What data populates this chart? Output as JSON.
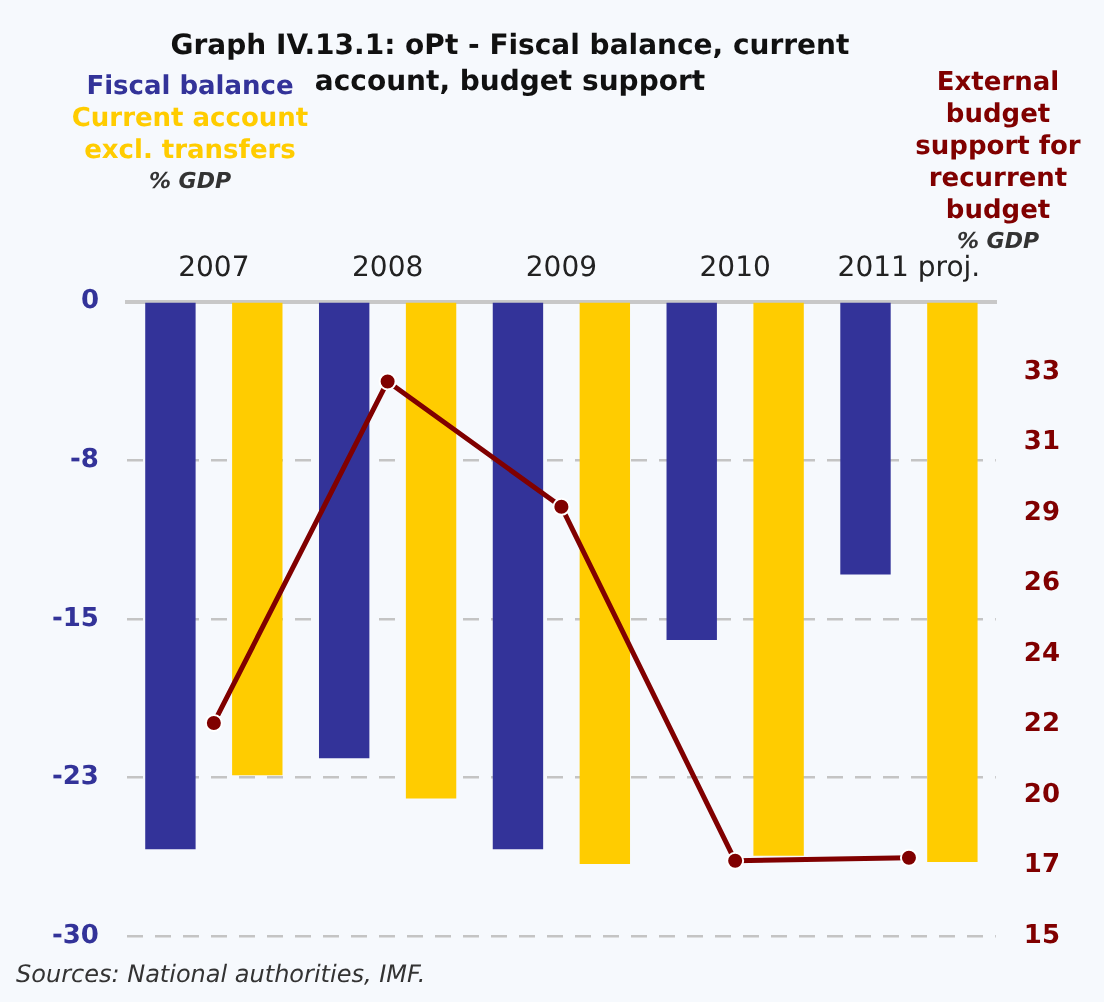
{
  "chart_data": {
    "type": "bar",
    "title": "Graph IV.13.1: oPt - Fiscal balance, current account, budget support",
    "ylabel": "% GDP",
    "y2label": "% GDP",
    "categories": [
      "2007",
      "2008",
      "2009",
      "2010",
      "2011 proj."
    ],
    "series": [
      {
        "name": "Fiscal balance",
        "color": "#333399",
        "values": [
          -25.9,
          -21.6,
          -25.9,
          -16.0,
          -12.9
        ]
      },
      {
        "name": "Current account excl. transfers",
        "color": "#ffcc00",
        "values": [
          -22.4,
          -23.5,
          -26.6,
          -26.2,
          -26.5
        ]
      },
      {
        "name": "External budget support for recurrent budget",
        "type": "line",
        "axis": "y2",
        "color": "#800000",
        "marker": "circle",
        "values": [
          21.8,
          32.7,
          28.7,
          17.4,
          17.5
        ]
      }
    ],
    "ylim": [
      -30,
      0
    ],
    "yticks": [
      0,
      {
        "value": -7.5,
        "label": "-8"
      },
      -15,
      {
        "value": -22.5,
        "label": "-23"
      },
      -30
    ],
    "y2lim": [
      15,
      35.25
    ],
    "y2ticks": [
      15,
      {
        "value": 17.25,
        "label": "17"
      },
      {
        "value": 19.5,
        "label": "20"
      },
      {
        "value": 21.75,
        "label": "22"
      },
      24,
      {
        "value": 26.25,
        "label": "26"
      },
      {
        "value": 28.5,
        "label": "29"
      },
      {
        "value": 30.75,
        "label": "31"
      },
      33,
      {
        "value": 35.25,
        "label": null
      }
    ],
    "grid": "y",
    "annotations": [
      "Sources: National authorities, IMF."
    ]
  }
}
